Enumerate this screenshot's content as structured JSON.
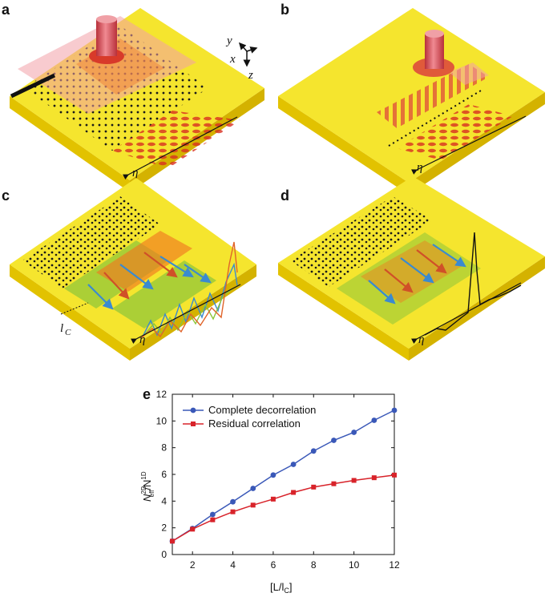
{
  "panels": {
    "a": {
      "label": "a",
      "eta": "η"
    },
    "b": {
      "label": "b",
      "eta": "η"
    },
    "c": {
      "label": "c",
      "eta": "η",
      "correlation_length": "l",
      "correlation_length_sub": "C"
    },
    "d": {
      "label": "d",
      "eta": "η"
    },
    "e": {
      "label": "e"
    }
  },
  "axes_glyph": {
    "y": "y",
    "x": "x",
    "z": "z"
  },
  "colors": {
    "slab": "#f5e52e",
    "slab_side": "#e2c200",
    "laser": "#e0606a",
    "blue_series": "#3a58b8",
    "red_series": "#d8232a"
  },
  "chart_data": {
    "type": "line",
    "x": [
      1,
      2,
      3,
      4,
      5,
      6,
      7,
      8,
      9,
      10,
      11,
      12
    ],
    "series": [
      {
        "name": "Complete decorrelation",
        "marker": "circle",
        "color": "#3a58b8",
        "values": [
          1.0,
          1.95,
          3.0,
          3.95,
          4.95,
          5.95,
          6.75,
          7.75,
          8.55,
          9.15,
          10.05,
          10.8
        ]
      },
      {
        "name": "Residual correlation",
        "marker": "square",
        "color": "#d8232a",
        "values": [
          1.0,
          1.9,
          2.6,
          3.2,
          3.7,
          4.15,
          4.65,
          5.05,
          5.3,
          5.55,
          5.75,
          5.95
        ]
      }
    ],
    "xlabel": "[L/l",
    "xlabel_sub": "C",
    "xlabel_tail": "]",
    "ylabel_main": "N",
    "ylabel_sup": "2D",
    "ylabel_sub": "eff",
    "ylabel_slash": "/N",
    "ylabel_sup2": "1D",
    "xlim": [
      1,
      12
    ],
    "ylim": [
      0,
      12
    ],
    "xticks": [
      2,
      4,
      6,
      8,
      10,
      12
    ],
    "yticks": [
      0,
      2,
      4,
      6,
      8,
      10,
      12
    ],
    "legend_position": "top-left",
    "grid": false
  }
}
